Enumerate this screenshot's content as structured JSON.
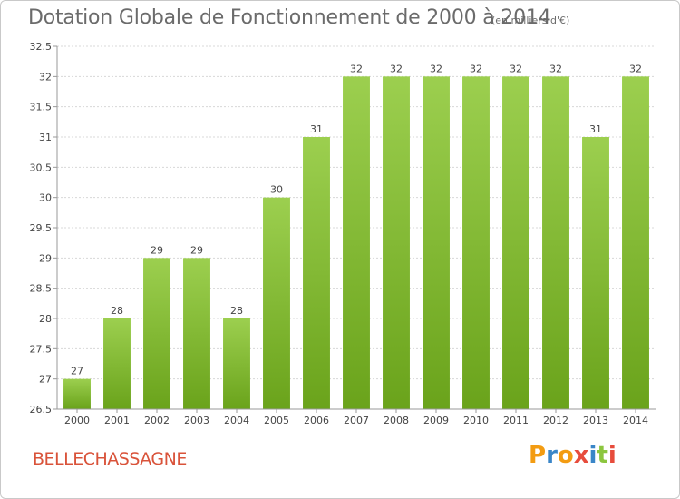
{
  "header": {
    "title": "Dotation Globale de Fonctionnement de 2000 à 2014",
    "unit_note": "(en milliers d'€)"
  },
  "footer": {
    "commune": "BELLECHASSAGNE",
    "brand_letters": [
      "P",
      "r",
      "o",
      "x",
      "i",
      "t",
      "i"
    ],
    "brand_colors": [
      "#f39c12",
      "#3a86c8",
      "#f39c12",
      "#e74c3c",
      "#3a86c8",
      "#8cc63f",
      "#e74c3c"
    ]
  },
  "colors": {
    "bar_top": "#9ccf4f",
    "bar_bottom": "#6aa31b",
    "grid": "#d8d8d8",
    "axis": "#999999",
    "text": "#444444",
    "commune": "#d9533a"
  },
  "chart_data": {
    "type": "bar",
    "title": "Dotation Globale de Fonctionnement de 2000 à 2014",
    "subtitle": "(en milliers d'€)",
    "xlabel": "",
    "ylabel": "",
    "categories": [
      "2000",
      "2001",
      "2002",
      "2003",
      "2004",
      "2005",
      "2006",
      "2007",
      "2008",
      "2009",
      "2010",
      "2011",
      "2012",
      "2013",
      "2014"
    ],
    "values": [
      27,
      28,
      29,
      29,
      28,
      30,
      31,
      32,
      32,
      32,
      32,
      32,
      32,
      31,
      32
    ],
    "data_labels": [
      "27",
      "28",
      "29",
      "29",
      "28",
      "30",
      "31",
      "32",
      "32",
      "32",
      "32",
      "32",
      "32",
      "31",
      "32"
    ],
    "ylim": [
      26.5,
      32.5
    ],
    "yticks": [
      26.5,
      27,
      27.5,
      28,
      28.5,
      29,
      29.5,
      30,
      30.5,
      31,
      31.5,
      32,
      32.5
    ],
    "ytick_labels": [
      "26.5",
      "27",
      "27.5",
      "28",
      "28.5",
      "29",
      "29.5",
      "30",
      "30.5",
      "31",
      "31.5",
      "32",
      "32.5"
    ],
    "grid": true,
    "legend": "none"
  }
}
